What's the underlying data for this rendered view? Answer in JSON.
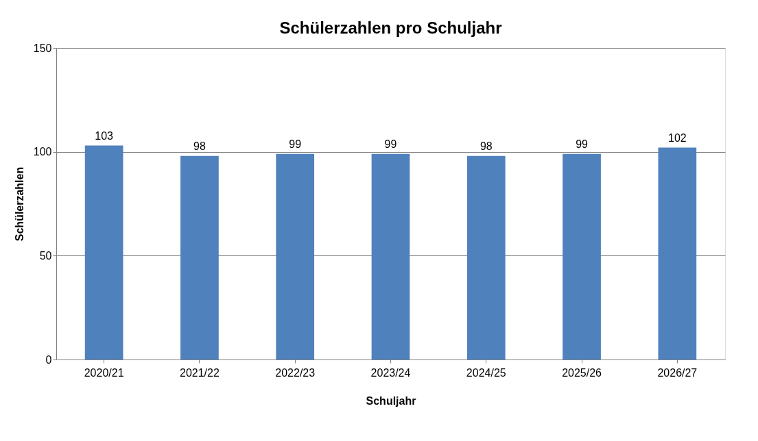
{
  "chart_data": {
    "type": "bar",
    "title": "Schülerzahlen pro Schuljahr",
    "xlabel": "Schuljahr",
    "ylabel": "Schülerzahlen",
    "categories": [
      "2020/21",
      "2021/22",
      "2022/23",
      "2023/24",
      "2024/25",
      "2025/26",
      "2026/27"
    ],
    "values": [
      103,
      98,
      99,
      99,
      98,
      99,
      102
    ],
    "color": "#4f81bd",
    "ylim": [
      0,
      150
    ],
    "yticks": [
      0,
      50,
      100,
      150
    ],
    "grid": "y",
    "data_labels": true
  }
}
